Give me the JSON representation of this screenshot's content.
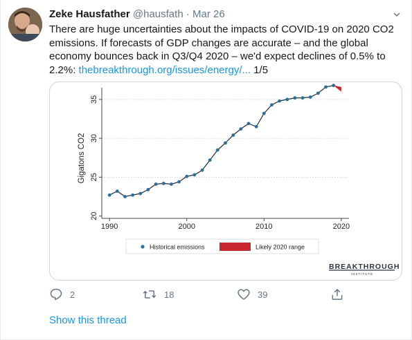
{
  "author": {
    "name": "Zeke Hausfather",
    "handle": "@hausfath",
    "separator": "·",
    "date": "Mar 26"
  },
  "tweet": {
    "text_before_link": "There are huge uncertainties about the impacts of COVID-19 on 2020 CO2 emissions. If forecasts of GDP changes are accurate – and the global economy bounces back in Q3/Q4 2020 – we'd expect declines of 0.5% to 2.2%: ",
    "link_text": "thebreakthrough.org/issues/energy/...",
    "text_after_link": " 1/5"
  },
  "chart_data": {
    "type": "line",
    "ylabel": "Gigatons CO2",
    "xlabel": "",
    "xlim": [
      1989,
      2021
    ],
    "ylim": [
      19.7,
      36.5
    ],
    "x_ticks": [
      1990,
      2000,
      2010,
      2020
    ],
    "y_ticks": [
      20,
      25,
      30,
      35
    ],
    "grid": true,
    "series": [
      {
        "name": "Historical emissions",
        "x": [
          1990,
          1991,
          1992,
          1993,
          1994,
          1995,
          1996,
          1997,
          1998,
          1999,
          2000,
          2001,
          2002,
          2003,
          2004,
          2005,
          2006,
          2007,
          2008,
          2009,
          2010,
          2011,
          2012,
          2013,
          2014,
          2015,
          2016,
          2017,
          2018,
          2019
        ],
        "y": [
          22.7,
          23.2,
          22.5,
          22.7,
          22.9,
          23.4,
          24.1,
          24.2,
          24.1,
          24.4,
          25.1,
          25.3,
          25.9,
          27.2,
          28.5,
          29.4,
          30.4,
          31.2,
          31.9,
          31.5,
          33.2,
          34.3,
          34.8,
          35.0,
          35.2,
          35.2,
          35.3,
          35.8,
          36.6,
          36.8
        ],
        "color": "#2c6e9b"
      }
    ],
    "range_series": {
      "name": "Likely 2020 range",
      "x": [
        2019,
        2020
      ],
      "y_low": [
        36.8,
        36.0
      ],
      "y_high": [
        36.8,
        36.6
      ],
      "color": "#c8262e"
    },
    "legend_position": "bottom",
    "brand": {
      "name": "BREAKTHROUGH",
      "sub": "INSTITUTE"
    }
  },
  "actions": {
    "replies": "2",
    "retweets": "18",
    "likes": "39"
  },
  "show_thread": "Show this thread",
  "colors": {
    "link": "#1b95e0",
    "secondary": "#657786",
    "text": "#14171a"
  },
  "icons": [
    "avatar-photo",
    "chevron-down-icon",
    "reply-icon",
    "retweet-icon",
    "like-icon",
    "share-icon"
  ]
}
